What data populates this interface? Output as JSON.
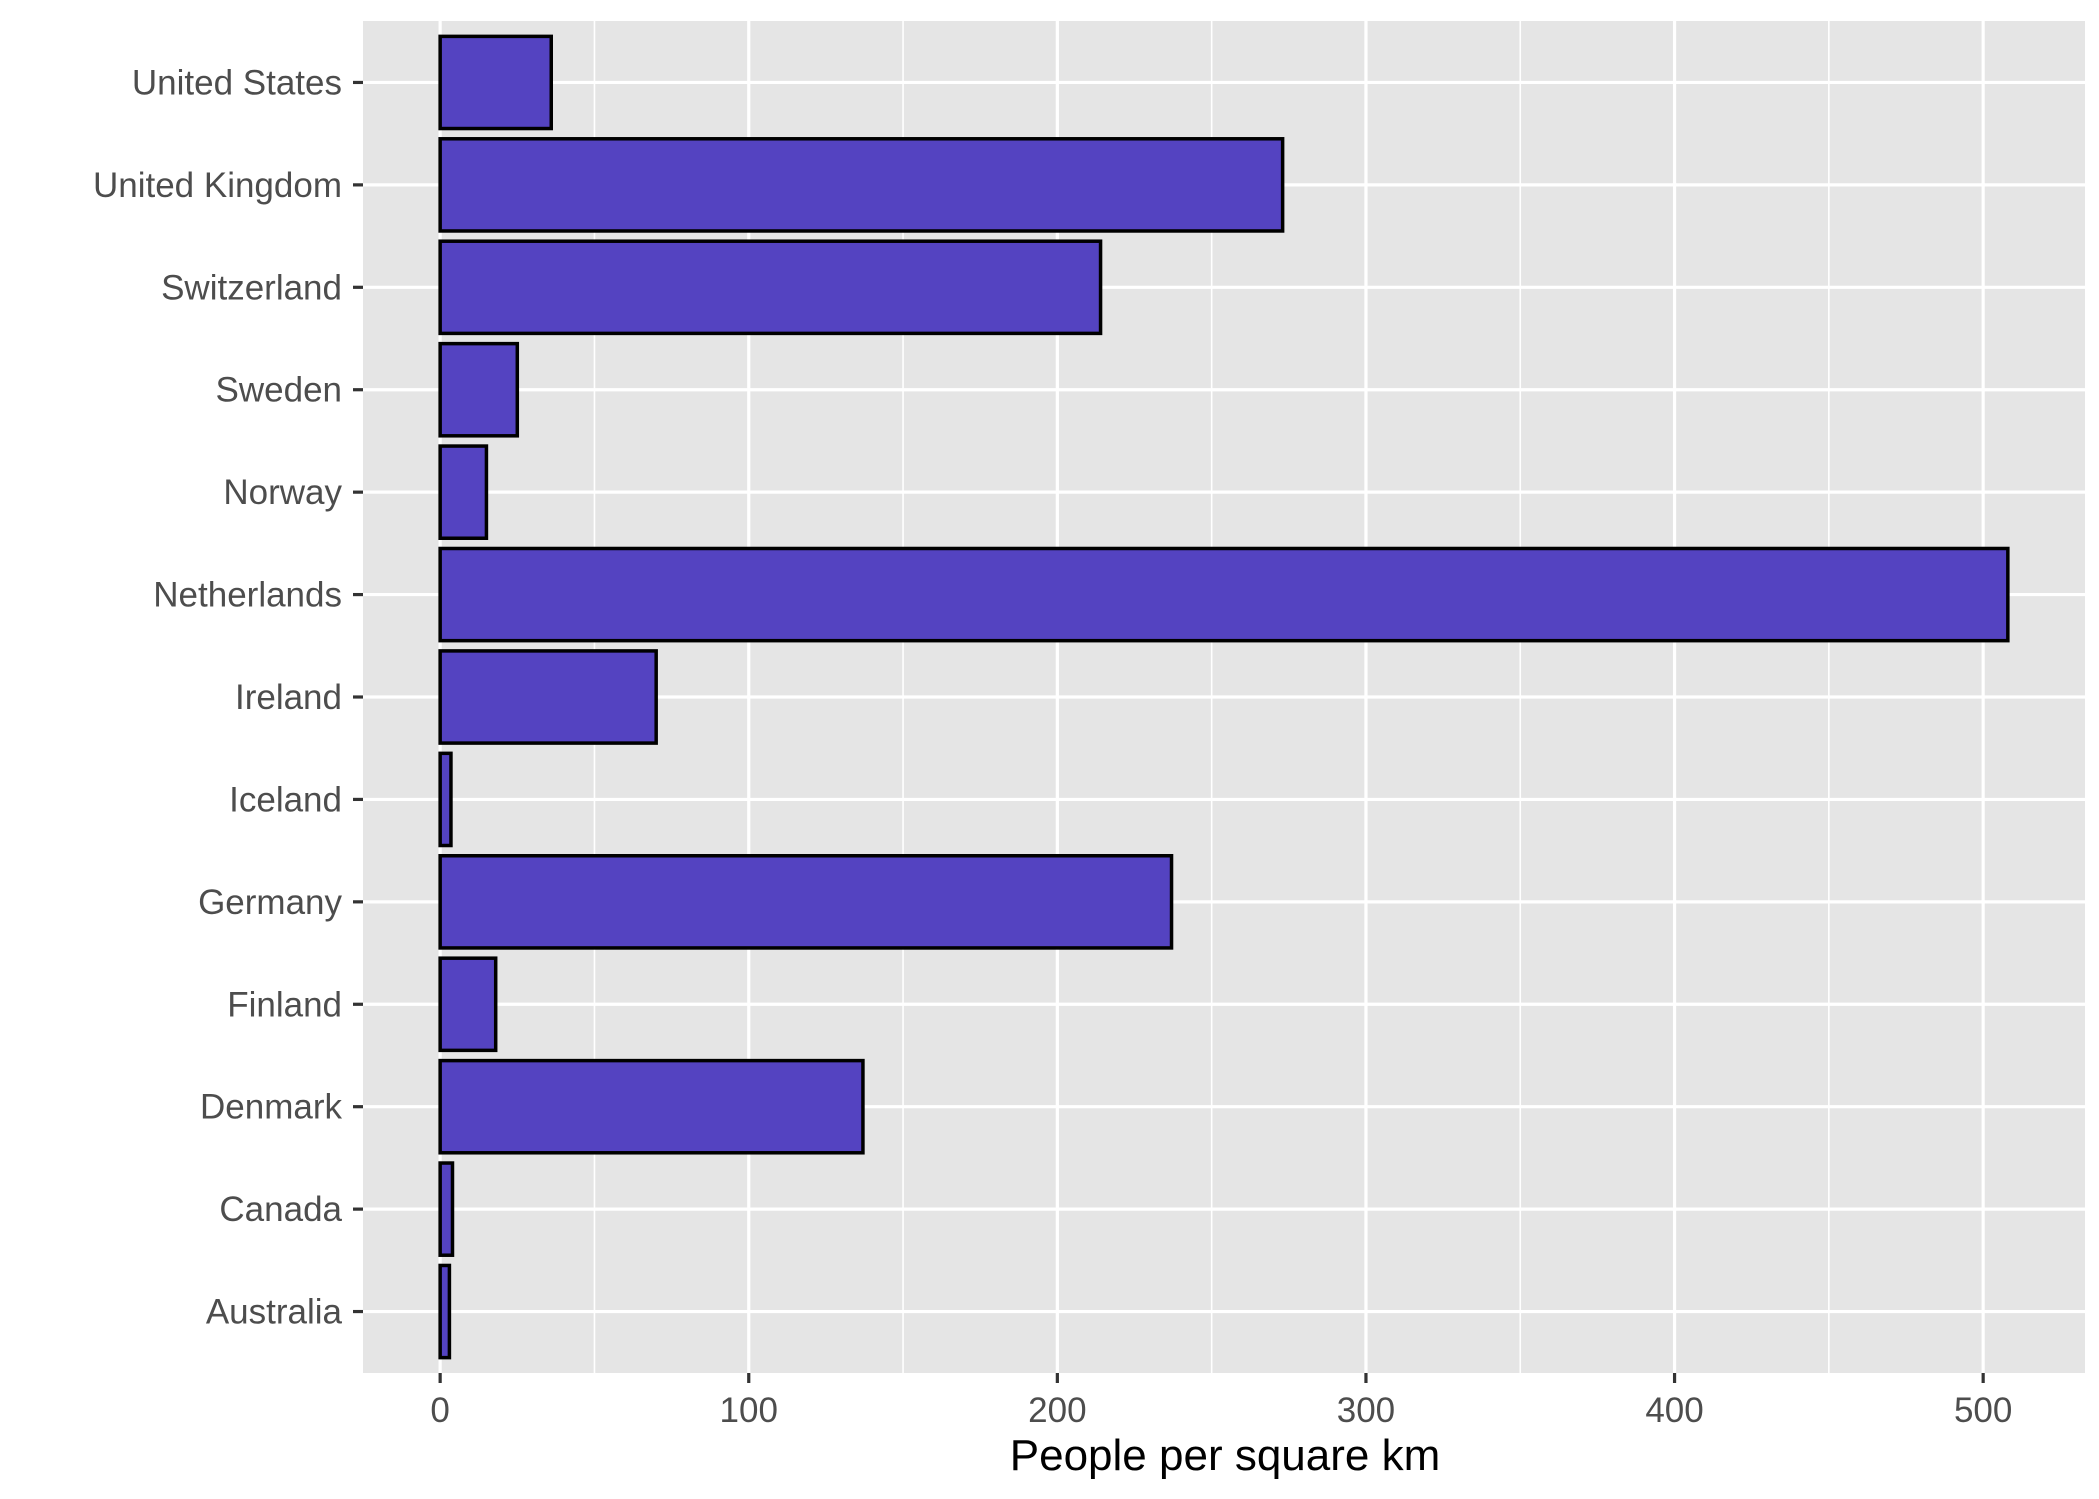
{
  "chart_data": {
    "type": "bar",
    "orientation": "horizontal",
    "title": "",
    "xlabel": "People per square km",
    "ylabel": "",
    "categories": [
      "United States",
      "United Kingdom",
      "Switzerland",
      "Sweden",
      "Norway",
      "Netherlands",
      "Ireland",
      "Iceland",
      "Germany",
      "Finland",
      "Denmark",
      "Canada",
      "Australia"
    ],
    "values": [
      36,
      273,
      214,
      25,
      15,
      508,
      70,
      3.5,
      237,
      18,
      137,
      4,
      3
    ],
    "xlim": [
      -25,
      533
    ],
    "x_ticks": [
      0,
      100,
      200,
      300,
      400,
      500
    ],
    "grid": true,
    "legend": "none",
    "colors": {
      "bar_fill": "#5443c1",
      "bar_stroke": "#000000",
      "panel_background": "#e5e5e5",
      "grid": "#ffffff"
    }
  }
}
